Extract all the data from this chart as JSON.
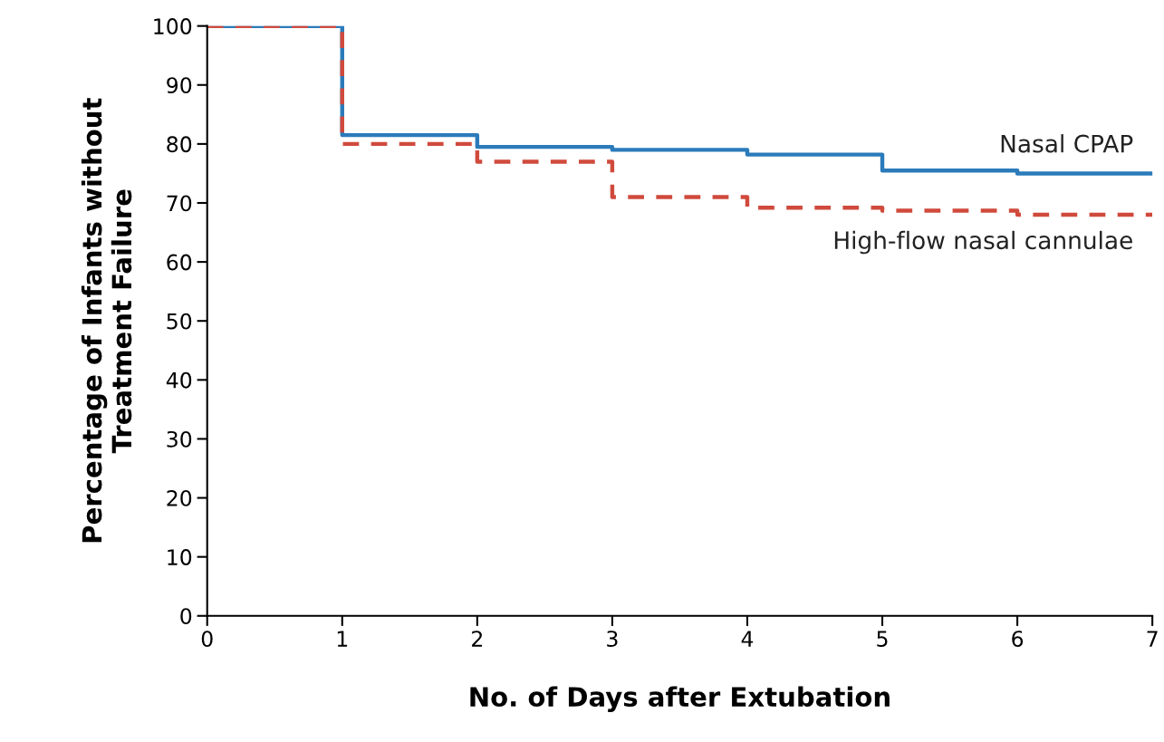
{
  "chart_data": {
    "type": "step",
    "xlabel": "No. of Days after Extubation",
    "ylabel": "Percentage of Infants without\nTreatment Failure",
    "x": [
      0,
      1,
      2,
      3,
      4,
      5,
      6,
      7
    ],
    "series": [
      {
        "name": "Nasal CPAP",
        "color": "#2b7bba",
        "line_style": "solid",
        "values": [
          100,
          81.5,
          79.5,
          79,
          78.2,
          75.5,
          75,
          75
        ]
      },
      {
        "name": "High-flow nasal cannulae",
        "color": "#d04a3c",
        "line_style": "dashed",
        "values": [
          100,
          80,
          77,
          71,
          69.2,
          68.7,
          68,
          68
        ]
      }
    ],
    "xlim": [
      0,
      7
    ],
    "xticks": [
      0,
      1,
      2,
      3,
      4,
      5,
      6,
      7
    ],
    "ylim": [
      0,
      100
    ],
    "yticks": [
      0,
      10,
      20,
      30,
      40,
      50,
      60,
      70,
      80,
      90,
      100
    ],
    "grid": false,
    "legend": false
  }
}
